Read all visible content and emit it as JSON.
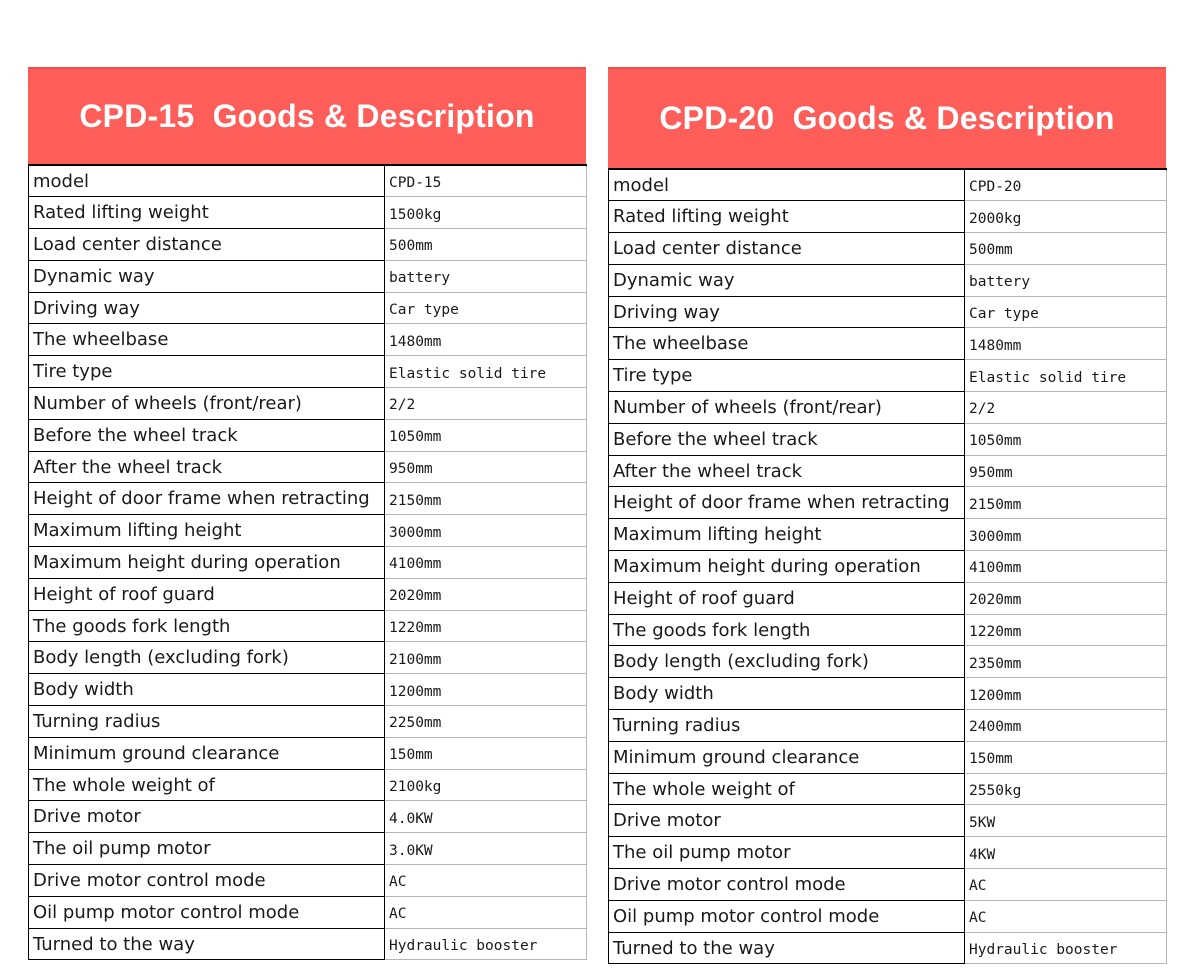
{
  "left": {
    "title": "CPD-15  Goods & Description",
    "rows": [
      {
        "label": "model",
        "value": "CPD-15"
      },
      {
        "label": "Rated lifting weight",
        "value": "1500kg"
      },
      {
        "label": "Load center distance",
        "value": "500mm"
      },
      {
        "label": "Dynamic way",
        "value": "battery"
      },
      {
        "label": "Driving way",
        "value": "Car type"
      },
      {
        "label": "The wheelbase",
        "value": "1480mm"
      },
      {
        "label": "Tire type",
        "value": "Elastic solid tire"
      },
      {
        "label": "Number of wheels (front/rear)",
        "value": "2/2"
      },
      {
        "label": "Before the wheel track",
        "value": "1050mm"
      },
      {
        "label": "After the wheel track",
        "value": "950mm"
      },
      {
        "label": "Height of door frame when retracting",
        "value": "2150mm"
      },
      {
        "label": "Maximum lifting height",
        "value": "3000mm"
      },
      {
        "label": "Maximum height during operation",
        "value": "4100mm"
      },
      {
        "label": "Height of roof guard",
        "value": "2020mm"
      },
      {
        "label": "The goods fork length",
        "value": "1220mm"
      },
      {
        "label": "Body length (excluding fork)",
        "value": "2100mm"
      },
      {
        "label": "Body width",
        "value": "1200mm"
      },
      {
        "label": "Turning radius",
        "value": "2250mm"
      },
      {
        "label": "Minimum ground clearance",
        "value": "150mm"
      },
      {
        "label": "The whole weight of",
        "value": "2100kg"
      },
      {
        "label": "Drive motor",
        "value": "4.0KW"
      },
      {
        "label": "The oil pump motor",
        "value": "3.0KW"
      },
      {
        "label": "Drive motor control mode",
        "value": "AC"
      },
      {
        "label": "Oil pump motor control mode",
        "value": "AC"
      },
      {
        "label": "Turned to the way",
        "value": "Hydraulic booster"
      }
    ]
  },
  "right": {
    "title": "CPD-20  Goods & Description",
    "rows": [
      {
        "label": "model",
        "value": "CPD-20"
      },
      {
        "label": "Rated lifting weight",
        "value": "2000kg"
      },
      {
        "label": "Load center distance",
        "value": "500mm"
      },
      {
        "label": "Dynamic way",
        "value": "battery"
      },
      {
        "label": "Driving way",
        "value": "Car type"
      },
      {
        "label": "The wheelbase",
        "value": "1480mm"
      },
      {
        "label": "Tire type",
        "value": "Elastic solid tire"
      },
      {
        "label": "Number of wheels (front/rear)",
        "value": "2/2"
      },
      {
        "label": "Before the wheel track",
        "value": "1050mm"
      },
      {
        "label": "After the wheel track",
        "value": "950mm"
      },
      {
        "label": "Height of door frame when retracting",
        "value": "2150mm"
      },
      {
        "label": "Maximum lifting height",
        "value": "3000mm"
      },
      {
        "label": "Maximum height during operation",
        "value": "4100mm"
      },
      {
        "label": "Height of roof guard",
        "value": "2020mm"
      },
      {
        "label": "The goods fork length",
        "value": "1220mm"
      },
      {
        "label": "Body length (excluding fork)",
        "value": "2350mm"
      },
      {
        "label": "Body width",
        "value": "1200mm"
      },
      {
        "label": "Turning radius",
        "value": "2400mm"
      },
      {
        "label": "Minimum ground clearance",
        "value": "150mm"
      },
      {
        "label": "The whole weight of",
        "value": "2550kg"
      },
      {
        "label": "Drive motor",
        "value": "5KW"
      },
      {
        "label": "The oil pump motor",
        "value": "4KW"
      },
      {
        "label": "Drive motor control mode",
        "value": "AC"
      },
      {
        "label": "Oil pump motor control mode",
        "value": "AC"
      },
      {
        "label": "Turned to the way",
        "value": "Hydraulic booster"
      }
    ]
  },
  "colors": {
    "banner": "#fe5e59",
    "banner_text": "#ffffff",
    "grid": "#000000"
  }
}
